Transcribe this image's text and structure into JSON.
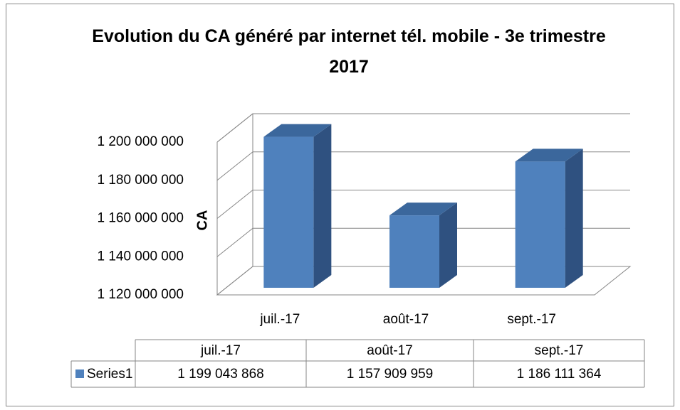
{
  "chart_data": {
    "type": "bar3d",
    "title": "Evolution du CA généré par internet tél. mobile - 3e trimestre 2017",
    "y_axis_label": "CA",
    "categories": [
      "juil.-17",
      "août-17",
      "sept.-17"
    ],
    "series": [
      {
        "name": "Series1",
        "color": "#4f81bd",
        "values": [
          1199043868,
          1157909959,
          1186111364
        ],
        "value_labels": [
          "1 199 043 868",
          "1 157 909 959",
          "1 186 111 364"
        ]
      }
    ],
    "ylim": [
      1120000000,
      1200000000
    ],
    "yticks": [
      {
        "value": 1120000000,
        "label": "1 120 000 000"
      },
      {
        "value": 1140000000,
        "label": "1 140 000 000"
      },
      {
        "value": 1160000000,
        "label": "1 160 000 000"
      },
      {
        "value": 1180000000,
        "label": "1 180 000 000"
      },
      {
        "value": 1200000000,
        "label": "1 200 000 000"
      }
    ],
    "grid": true,
    "data_table": true
  }
}
